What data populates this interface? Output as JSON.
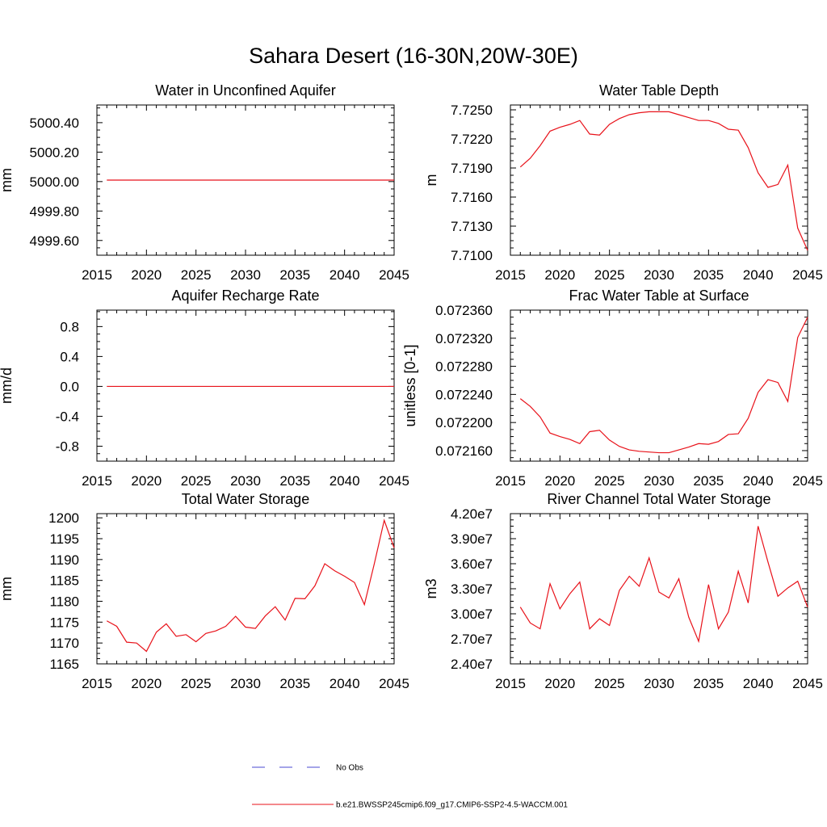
{
  "figure": {
    "title": "Sahara Desert (16-30N,20W-30E)",
    "legend": {
      "placement": "bottom-center",
      "entries": [
        {
          "label": "No Obs",
          "color": "#4a4ad0",
          "style": "dashed"
        },
        {
          "label": "b.e21.BWSSP245cmip6.f09_g17.CMIP6-SSP2-4.5-WACCM.001",
          "color": "#e8121a",
          "style": "solid"
        }
      ]
    }
  },
  "chart_data": [
    {
      "type": "line",
      "title": "Water in Unconfined Aquifer",
      "ylabel": "mm",
      "xlim": [
        2015,
        2045
      ],
      "ylim": [
        4999.5,
        5000.52
      ],
      "yticks": [
        4999.6,
        4999.8,
        5000.0,
        5000.2,
        5000.4
      ],
      "ytick_labels": [
        "4999.60",
        "4999.80",
        "5000.00",
        "5000.20",
        "5000.40"
      ],
      "xticks": [
        2015,
        2020,
        2025,
        2030,
        2035,
        2040,
        2045
      ],
      "x": [
        2016,
        2045
      ],
      "series": [
        {
          "color": "#e8121a",
          "values": [
            5000.01,
            5000.01
          ]
        }
      ]
    },
    {
      "type": "line",
      "title": "Water Table Depth",
      "ylabel": "m",
      "xlim": [
        2015,
        2045
      ],
      "ylim": [
        7.71,
        7.7255
      ],
      "yticks": [
        7.71,
        7.713,
        7.716,
        7.719,
        7.722,
        7.725
      ],
      "ytick_labels": [
        "7.7100",
        "7.7130",
        "7.7160",
        "7.7190",
        "7.7220",
        "7.7250"
      ],
      "xticks": [
        2015,
        2020,
        2025,
        2030,
        2035,
        2040,
        2045
      ],
      "x": [
        2016,
        2017,
        2018,
        2019,
        2020,
        2021,
        2022,
        2023,
        2024,
        2025,
        2026,
        2027,
        2028,
        2029,
        2030,
        2031,
        2032,
        2033,
        2034,
        2035,
        2036,
        2037,
        2038,
        2039,
        2040,
        2041,
        2042,
        2043,
        2044,
        2045
      ],
      "series": [
        {
          "color": "#e8121a",
          "values": [
            7.7191,
            7.72,
            7.7213,
            7.7228,
            7.7232,
            7.7235,
            7.7239,
            7.7225,
            7.7224,
            7.7235,
            7.7241,
            7.7245,
            7.7247,
            7.7248,
            7.7248,
            7.7248,
            7.7245,
            7.7242,
            7.7239,
            7.7239,
            7.7236,
            7.723,
            7.7229,
            7.7211,
            7.7185,
            7.717,
            7.7173,
            7.7193,
            7.7128,
            7.7105
          ]
        }
      ]
    },
    {
      "type": "line",
      "title": "Aquifer Recharge Rate",
      "ylabel": "mm/d",
      "xlim": [
        2015,
        2045
      ],
      "ylim": [
        -1.0,
        1.02
      ],
      "yticks": [
        -0.8,
        -0.4,
        0.0,
        0.4,
        0.8
      ],
      "ytick_labels": [
        "-0.8",
        "-0.4",
        "0.0",
        "0.4",
        "0.8"
      ],
      "xticks": [
        2015,
        2020,
        2025,
        2030,
        2035,
        2040,
        2045
      ],
      "x": [
        2016,
        2045
      ],
      "series": [
        {
          "color": "#e8121a",
          "values": [
            0.0,
            0.0
          ]
        }
      ]
    },
    {
      "type": "line",
      "title": "Frac Water Table at Surface",
      "ylabel": "unitless [0-1]",
      "xlim": [
        2015,
        2045
      ],
      "ylim": [
        0.072145,
        0.07236
      ],
      "yticks": [
        0.07216,
        0.0722,
        0.07224,
        0.07228,
        0.07232,
        0.07236
      ],
      "ytick_labels": [
        "0.072160",
        "0.072200",
        "0.072240",
        "0.072280",
        "0.072320",
        "0.072360"
      ],
      "xticks": [
        2015,
        2020,
        2025,
        2030,
        2035,
        2040,
        2045
      ],
      "x": [
        2016,
        2017,
        2018,
        2019,
        2020,
        2021,
        2022,
        2023,
        2024,
        2025,
        2026,
        2027,
        2028,
        2029,
        2030,
        2031,
        2032,
        2033,
        2034,
        2035,
        2036,
        2037,
        2038,
        2039,
        2040,
        2041,
        2042,
        2043,
        2044,
        2045
      ],
      "series": [
        {
          "color": "#e8121a",
          "values": [
            0.072234,
            0.072223,
            0.072208,
            0.072185,
            0.07218,
            0.072176,
            0.07217,
            0.072187,
            0.072189,
            0.072175,
            0.072166,
            0.072161,
            0.072159,
            0.072158,
            0.072157,
            0.072157,
            0.072161,
            0.072165,
            0.07217,
            0.072169,
            0.072173,
            0.072183,
            0.072184,
            0.072206,
            0.072243,
            0.072261,
            0.072257,
            0.07223,
            0.072321,
            0.07235
          ]
        }
      ]
    },
    {
      "type": "line",
      "title": "Total Water Storage",
      "ylabel": "mm",
      "xlim": [
        2015,
        2045
      ],
      "ylim": [
        1165,
        1201
      ],
      "yticks": [
        1165,
        1170,
        1175,
        1180,
        1185,
        1190,
        1195,
        1200
      ],
      "ytick_labels": [
        "1165",
        "1170",
        "1175",
        "1180",
        "1185",
        "1190",
        "1195",
        "1200"
      ],
      "xticks": [
        2015,
        2020,
        2025,
        2030,
        2035,
        2040,
        2045
      ],
      "x": [
        2016,
        2017,
        2018,
        2019,
        2020,
        2021,
        2022,
        2023,
        2024,
        2025,
        2026,
        2027,
        2028,
        2029,
        2030,
        2031,
        2032,
        2033,
        2034,
        2035,
        2036,
        2037,
        2038,
        2039,
        2040,
        2041,
        2042,
        2043,
        2044,
        2045
      ],
      "series": [
        {
          "color": "#e8121a",
          "values": [
            1175.3,
            1174.0,
            1170.2,
            1170.0,
            1168.0,
            1172.6,
            1174.6,
            1171.6,
            1172.0,
            1170.3,
            1172.3,
            1172.9,
            1174.0,
            1176.4,
            1173.8,
            1173.5,
            1176.5,
            1178.7,
            1175.5,
            1180.7,
            1180.6,
            1183.7,
            1189.0,
            1187.3,
            1186.0,
            1184.5,
            1179.2,
            1189.0,
            1199.4,
            1192.8
          ]
        }
      ]
    },
    {
      "type": "line",
      "title": "River Channel Total Water Storage",
      "ylabel": "m3",
      "xlim": [
        2015,
        2045
      ],
      "ylim": [
        24000000,
        42000000
      ],
      "yticks": [
        24000000,
        27000000,
        30000000,
        33000000,
        36000000,
        39000000,
        42000000
      ],
      "ytick_labels": [
        "2.40e7",
        "2.70e7",
        "3.00e7",
        "3.30e7",
        "3.60e7",
        "3.90e7",
        "4.20e7"
      ],
      "xticks": [
        2015,
        2020,
        2025,
        2030,
        2035,
        2040,
        2045
      ],
      "x": [
        2016,
        2017,
        2018,
        2019,
        2020,
        2021,
        2022,
        2023,
        2024,
        2025,
        2026,
        2027,
        2028,
        2029,
        2030,
        2031,
        2032,
        2033,
        2034,
        2035,
        2036,
        2037,
        2038,
        2039,
        2040,
        2041,
        2042,
        2043,
        2044,
        2045
      ],
      "series": [
        {
          "color": "#e8121a",
          "values": [
            30800000,
            28900000,
            28200000,
            33600000,
            30600000,
            32400000,
            33800000,
            28200000,
            29400000,
            28600000,
            32800000,
            34500000,
            33300000,
            36700000,
            32600000,
            31900000,
            34200000,
            29600000,
            26700000,
            33500000,
            28200000,
            30200000,
            35100000,
            31300000,
            40500000,
            36200000,
            32100000,
            33100000,
            33900000,
            30800000
          ]
        }
      ]
    }
  ]
}
